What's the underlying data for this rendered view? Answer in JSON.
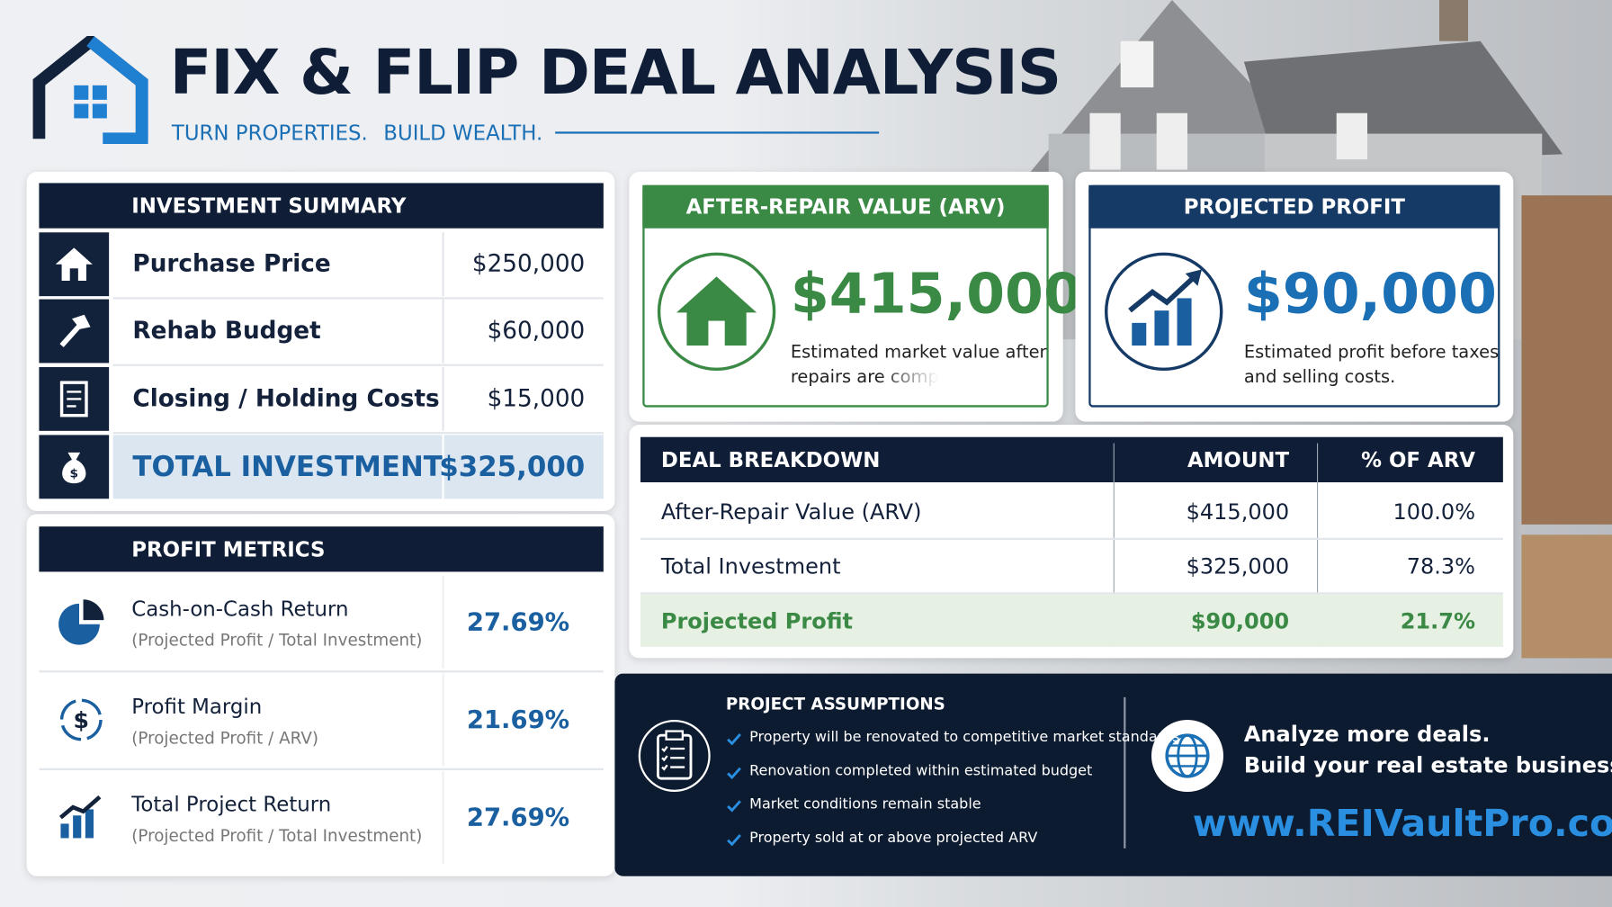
{
  "header": {
    "title": "FIX & FLIP DEAL ANALYSIS",
    "subtitle_1": "TURN PROPERTIES.",
    "subtitle_2": "BUILD WEALTH."
  },
  "investment_summary": {
    "title": "INVESTMENT SUMMARY",
    "rows": [
      [
        "Purchase Price",
        "$250,000"
      ],
      [
        "Rehab Budget",
        "$60,000"
      ],
      [
        "Closing / Holding Costs",
        "$15,000"
      ],
      [
        "TOTAL INVESTMENT",
        "$325,000"
      ]
    ]
  },
  "arv_card": {
    "title": "AFTER-REPAIR VALUE (ARV)",
    "value": "$415,000",
    "description_1": "Estimated market value after",
    "description_2": "repairs are comp"
  },
  "profit_card": {
    "title": "PROJECTED PROFIT",
    "value": "$90,000",
    "description_1": "Estimated profit before taxes",
    "description_2": "and selling costs."
  },
  "deal_breakdown": {
    "headers": [
      "DEAL BREAKDOWN",
      "AMOUNT",
      "% OF ARV"
    ],
    "rows": [
      [
        "After-Repair Value (ARV)",
        "$415,000",
        "100.0%"
      ],
      [
        "Total Investment",
        "$325,000",
        "78.3%"
      ],
      [
        "Projected Profit",
        "$90,000",
        "21.7%"
      ]
    ]
  },
  "profit_metrics": {
    "title": "PROFIT METRICS",
    "rows": [
      {
        "label": "Cash-on-Cash Return",
        "formula": "(Projected Profit / Total Investment)",
        "value": "27.69%"
      },
      {
        "label": "Profit Margin",
        "formula": "(Projected Profit / ARV)",
        "value": "21.69%"
      },
      {
        "label": "Total Project Return",
        "formula": "(Projected Profit / Total Investment)",
        "value": "27.69%"
      }
    ]
  },
  "assumptions": {
    "title": "PROJECT ASSUMPTIONS",
    "items": [
      "Property will be renovated to competitive market standards",
      "Renovation completed within estimated budget",
      "Market conditions remain stable",
      "Property sold at or above projected ARV"
    ]
  },
  "cta": {
    "line_1": "Analyze more deals.",
    "line_2": "Build your real estate business.",
    "url": "www.REIVaultPro.com"
  }
}
